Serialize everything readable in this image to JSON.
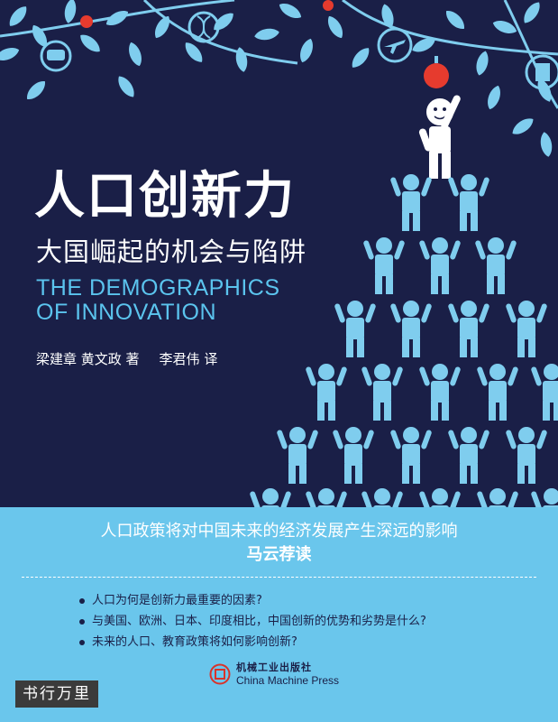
{
  "cover": {
    "title_cn": "人口创新力",
    "subtitle_cn": "大国崛起的机会与陷阱",
    "title_en_lines": [
      "THE DEMOGRAPHICS",
      "OF INNOVATION"
    ],
    "authors": "梁建章 黄文政 著",
    "translator": "李君伟 译"
  },
  "band": {
    "tagline": "人口政策将对中国未来的经济发展产生深远的影响",
    "recommendation": "马云荐读",
    "bullets": [
      "人口为何是创新力最重要的因素?",
      "与美国、欧洲、日本、印度相比，中国创新的优势和劣势是什么?",
      "未来的人口、教育政策将如何影响创新?"
    ]
  },
  "publisher": {
    "name_cn": "机械工业出版社",
    "name_en": "China Machine Press"
  },
  "watermark": "书行万里",
  "colors": {
    "navy": "#1a1f47",
    "sky_blue": "#6ac6ec",
    "leaf_blue": "#7fcdee",
    "apple_red": "#e63b2e",
    "white": "#ffffff"
  },
  "icons": [
    "leaf-icon",
    "apple-icon",
    "chat-icon",
    "dna-icon",
    "airplane-icon",
    "document-icon",
    "person-figure-icon"
  ]
}
